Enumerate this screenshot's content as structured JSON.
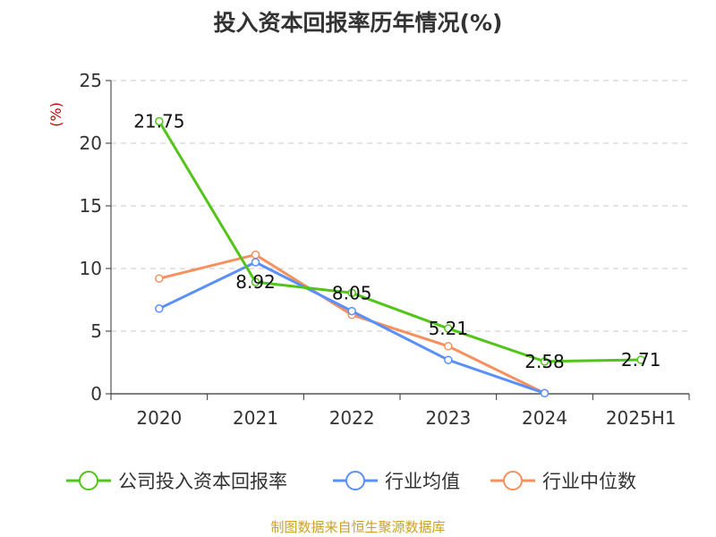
{
  "title": "投入资本回报率历年情况(%)",
  "source": "制图数据来自恒生聚源数据库",
  "chart_data": {
    "type": "line",
    "title": "投入资本回报率历年情况(%)",
    "ylabel": "(%)",
    "xlabel": "",
    "categories": [
      "2020",
      "2021",
      "2022",
      "2023",
      "2024",
      "2025H1"
    ],
    "ylim": [
      0,
      25
    ],
    "yticks": [
      0,
      5,
      10,
      15,
      20,
      25
    ],
    "grid": true,
    "legend_position": "bottom",
    "series": [
      {
        "name": "公司投入资本回报率",
        "color": "#52c41a",
        "values": [
          21.75,
          8.92,
          8.05,
          5.21,
          2.58,
          2.71
        ],
        "labels": [
          "21.75",
          "8.92",
          "8.05",
          "5.21",
          "2.58",
          "2.71"
        ]
      },
      {
        "name": "行业均值",
        "color": "#5b8ff9",
        "values": [
          6.8,
          10.5,
          6.6,
          2.7,
          0.05,
          null
        ]
      },
      {
        "name": "行业中位数",
        "color": "#f6905e",
        "values": [
          9.2,
          11.1,
          6.3,
          3.8,
          0.05,
          null
        ]
      }
    ]
  }
}
